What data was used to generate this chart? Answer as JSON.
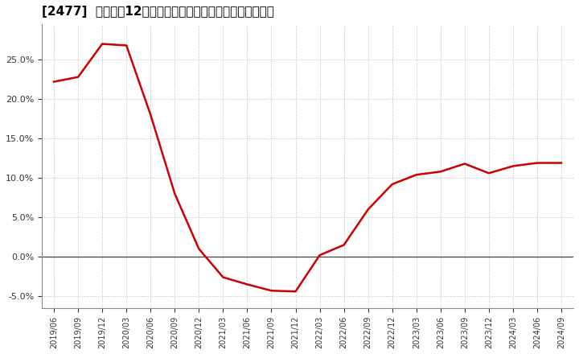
{
  "title": "[2477]  売上高の12か月移動合計の対前年同期増減率の推移",
  "line_color": "#cc0000",
  "background_color": "#ffffff",
  "grid_color": "#bbbbbb",
  "ylim": [
    -0.065,
    0.295
  ],
  "yticks": [
    -0.05,
    0.0,
    0.05,
    0.1,
    0.15,
    0.2,
    0.25
  ],
  "dates": [
    "2019/06",
    "2019/09",
    "2019/12",
    "2020/03",
    "2020/06",
    "2020/09",
    "2020/12",
    "2021/03",
    "2021/06",
    "2021/09",
    "2021/12",
    "2022/03",
    "2022/06",
    "2022/09",
    "2022/12",
    "2023/03",
    "2023/06",
    "2023/09",
    "2023/12",
    "2024/03",
    "2024/06",
    "2024/09"
  ],
  "values": [
    0.222,
    0.228,
    0.27,
    0.268,
    0.18,
    0.08,
    0.01,
    -0.026,
    -0.035,
    -0.043,
    -0.044,
    0.002,
    0.015,
    0.06,
    0.092,
    0.104,
    0.108,
    0.118,
    0.106,
    0.115,
    0.119,
    0.119
  ],
  "title_fontsize": 11,
  "tick_fontsize": 8,
  "linewidth": 1.8
}
